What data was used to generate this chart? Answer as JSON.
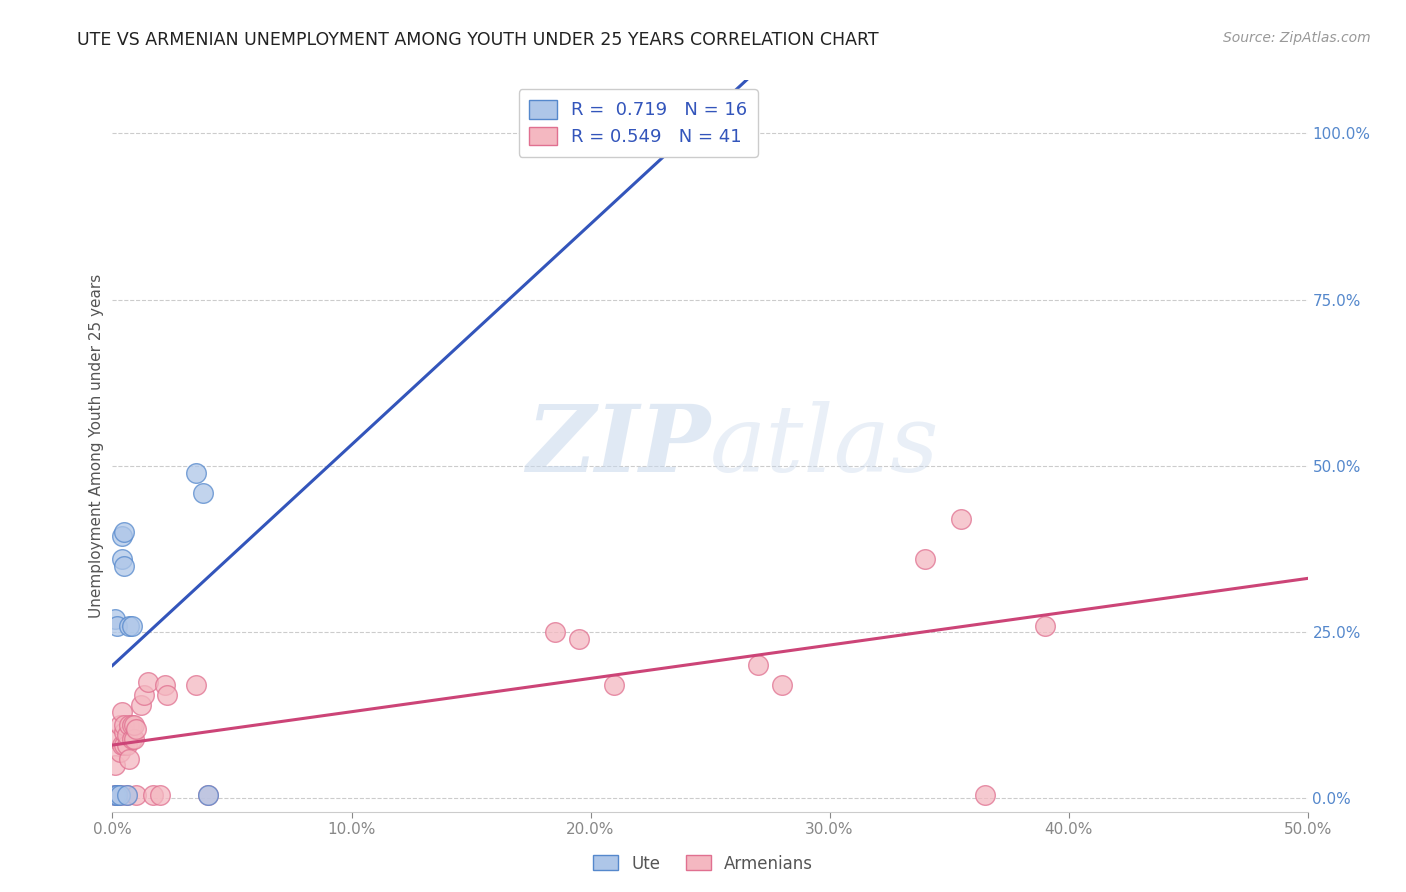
{
  "title": "UTE VS ARMENIAN UNEMPLOYMENT AMONG YOUTH UNDER 25 YEARS CORRELATION CHART",
  "source": "Source: ZipAtlas.com",
  "ylabel": "Unemployment Among Youth under 25 years",
  "xlim": [
    0.0,
    0.5
  ],
  "ylim": [
    -0.02,
    1.08
  ],
  "plot_ylim": [
    0.0,
    1.0
  ],
  "ute_fill_color": "#aec6e8",
  "armenian_fill_color": "#f4b8c1",
  "ute_edge_color": "#5588cc",
  "armenian_edge_color": "#e07090",
  "ute_line_color": "#3355bb",
  "armenian_line_color": "#cc4477",
  "ute_R": "0.719",
  "ute_N": "16",
  "armenian_R": "0.549",
  "armenian_N": "41",
  "watermark_zip": "ZIP",
  "watermark_atlas": "atlas",
  "ute_x": [
    0.001,
    0.001,
    0.002,
    0.002,
    0.003,
    0.004,
    0.004,
    0.005,
    0.005,
    0.006,
    0.007,
    0.008,
    0.035,
    0.038,
    0.04,
    0.24
  ],
  "ute_y": [
    0.005,
    0.27,
    0.005,
    0.26,
    0.005,
    0.36,
    0.395,
    0.35,
    0.4,
    0.005,
    0.26,
    0.26,
    0.49,
    0.46,
    0.005,
    1.0
  ],
  "armenian_x": [
    0.001,
    0.001,
    0.002,
    0.002,
    0.003,
    0.003,
    0.003,
    0.004,
    0.004,
    0.005,
    0.005,
    0.005,
    0.006,
    0.006,
    0.006,
    0.007,
    0.007,
    0.008,
    0.008,
    0.009,
    0.009,
    0.01,
    0.01,
    0.012,
    0.013,
    0.015,
    0.017,
    0.02,
    0.022,
    0.023,
    0.035,
    0.04,
    0.185,
    0.195,
    0.21,
    0.27,
    0.28,
    0.34,
    0.355,
    0.365,
    0.39
  ],
  "armenian_y": [
    0.005,
    0.05,
    0.005,
    0.09,
    0.005,
    0.07,
    0.11,
    0.08,
    0.13,
    0.08,
    0.1,
    0.11,
    0.005,
    0.08,
    0.095,
    0.06,
    0.11,
    0.09,
    0.11,
    0.09,
    0.11,
    0.005,
    0.105,
    0.14,
    0.155,
    0.175,
    0.005,
    0.005,
    0.17,
    0.155,
    0.17,
    0.005,
    0.25,
    0.24,
    0.17,
    0.2,
    0.17,
    0.36,
    0.42,
    0.005,
    0.26
  ],
  "x_tick_positions": [
    0.0,
    0.1,
    0.2,
    0.3,
    0.4,
    0.5
  ],
  "x_tick_labels": [
    "0.0%",
    "10.0%",
    "20.0%",
    "30.0%",
    "40.0%",
    "50.0%"
  ],
  "y_tick_positions": [
    0.0,
    0.25,
    0.5,
    0.75,
    1.0
  ],
  "y_tick_labels": [
    "0.0%",
    "25.0%",
    "50.0%",
    "75.0%",
    "100.0%"
  ]
}
